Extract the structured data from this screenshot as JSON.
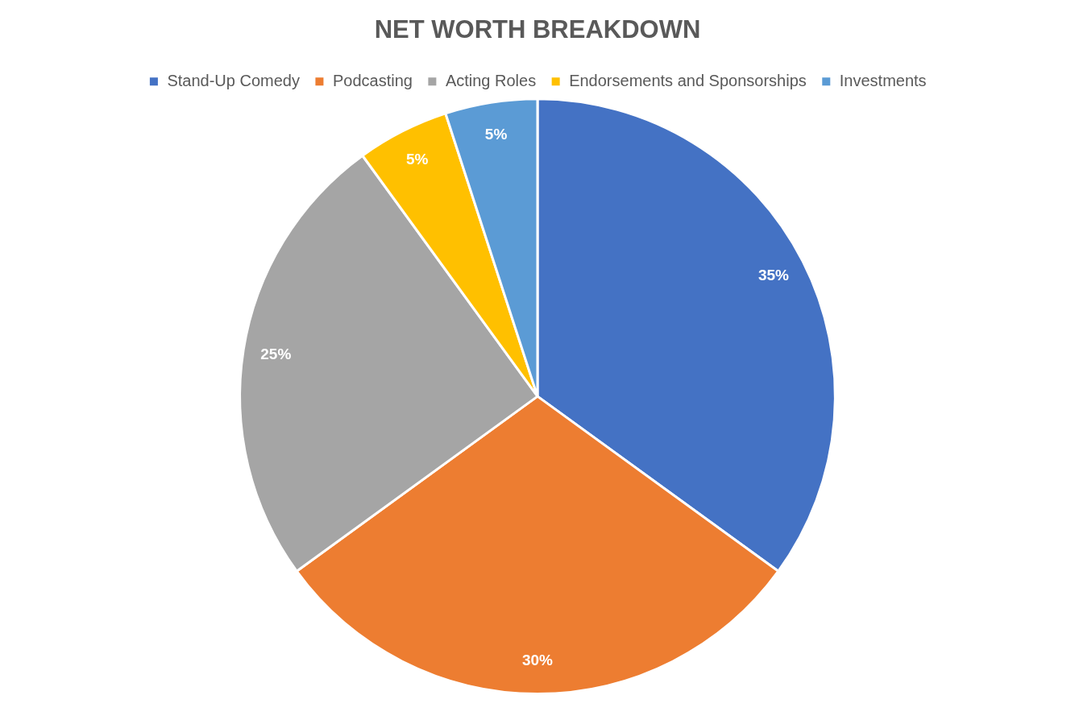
{
  "chart_data": {
    "type": "pie",
    "title": "NET WORTH BREAKDOWN",
    "categories": [
      "Stand-Up Comedy",
      "Podcasting",
      "Acting Roles",
      "Endorsements and Sponsorships",
      "Investments"
    ],
    "values": [
      35,
      30,
      25,
      5,
      5
    ],
    "value_labels": [
      "35%",
      "30%",
      "25%",
      "5%",
      "5%"
    ],
    "colors": [
      "#4472c4",
      "#ed7d31",
      "#a5a5a5",
      "#ffc000",
      "#5b9bd5"
    ],
    "data_labels": true,
    "legend": "top"
  }
}
